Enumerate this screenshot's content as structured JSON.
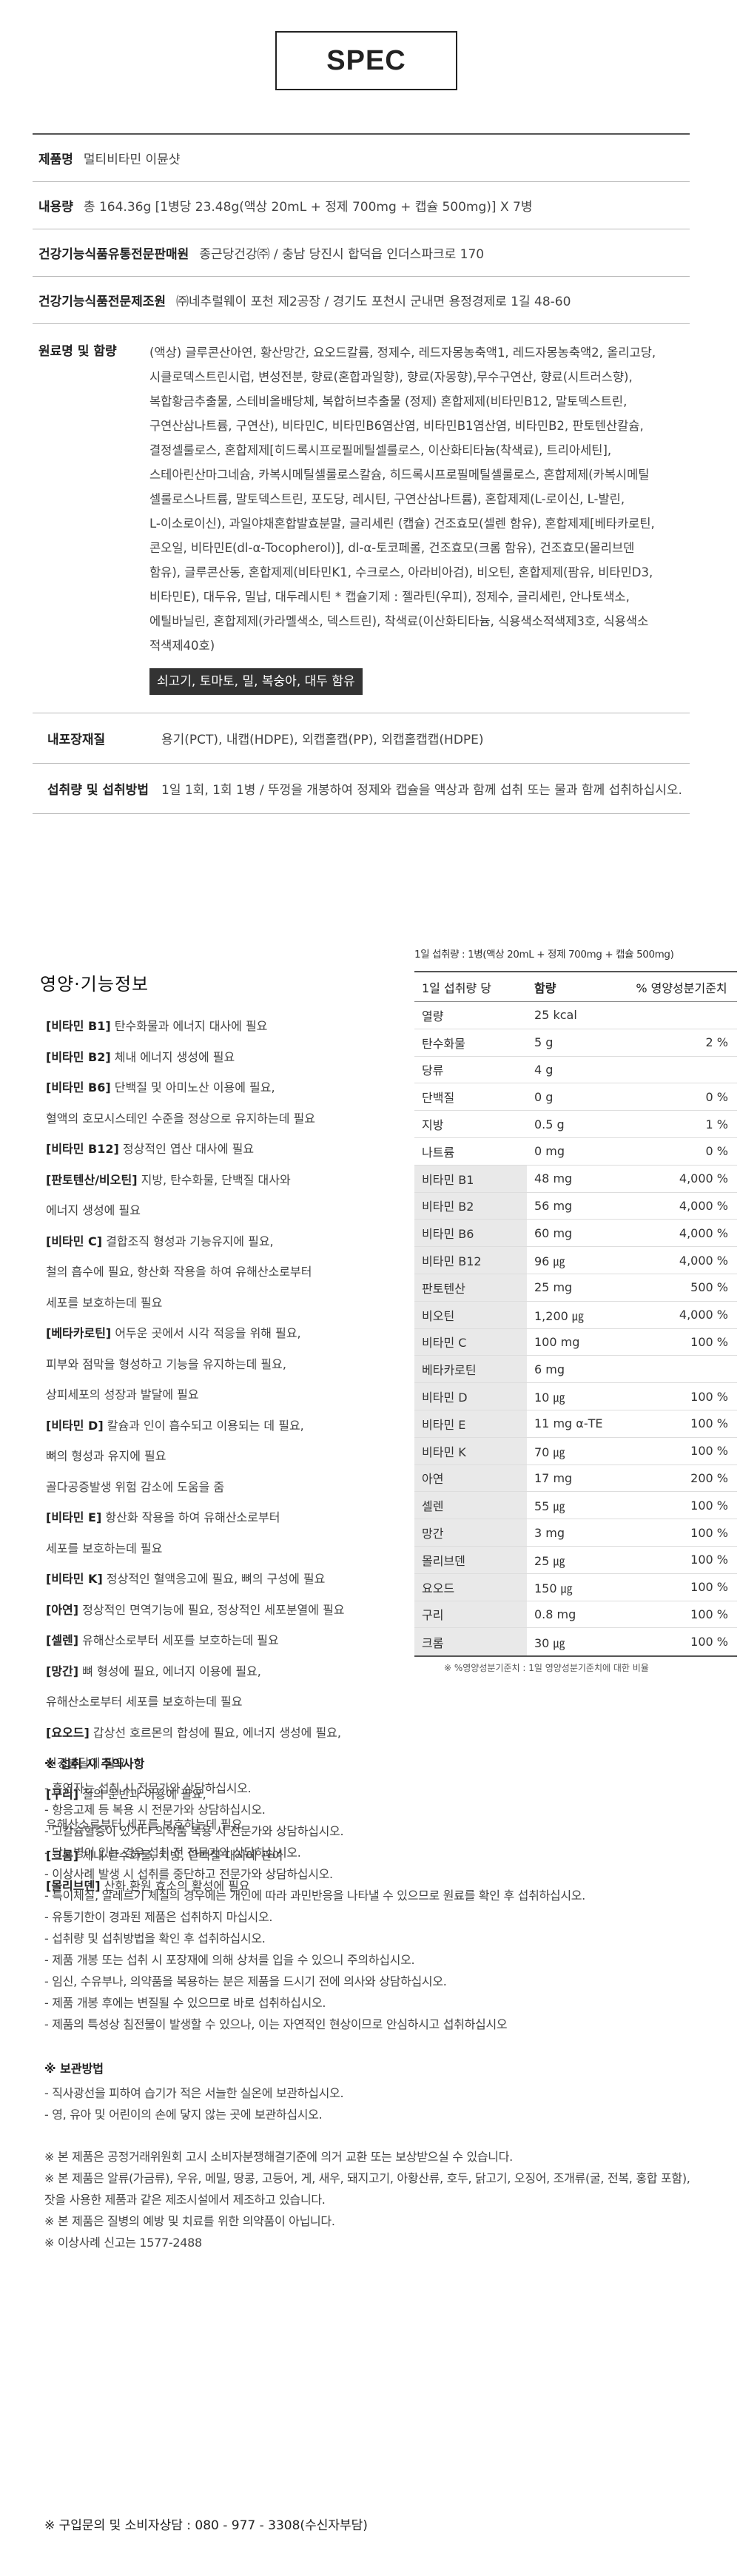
{
  "spec": {
    "title": "SPEC"
  },
  "product": {
    "name_label": "제품명",
    "name": "멀티비타민 이뮨샷",
    "content_label": "내용량",
    "content": "총 164.36g [1병당 23.48g(액상 20mL + 정제 700mg + 캡슐 500mg)] X 7병",
    "manufacturer_label": "건강기능식품유통전문판매원",
    "manufacturer": "종근당건강㈜ / 충남 당진시 합덕읍 인더스파크로 170",
    "producer_label": "건강기능식품전문제조원",
    "producer": "㈜네추럴웨이 포천 제2공장 / 경기도 포천시 군내면 용정경제로 1길 48-60",
    "ingredients_label": "원료명 및 함량",
    "ingredients_lines": [
      "(액상) 글루콘산아연, 황산망간, 요오드칼륨, 정제수, 레드자몽농축액1, 레드자몽농축액2, 올리고당,",
      "시클로덱스트린시럽, 변성전분, 향료(혼합과일향), 향료(자몽향),무수구연산, 향료(시트러스향),",
      "복합황금추출물, 스테비올배당체, 복합허브추출물 (정제) 혼합제제(비타민B12, 말토덱스트린,",
      "구연산삼나트륨, 구연산), 비타민C, 비타민B6염산염, 비타민B1염산염, 비타민B2, 판토텐산칼슘,",
      "결정셀룰로스, 혼합제제[히드록시프로필메틸셀룰로스, 이산화티타늄(착색료), 트리아세틴],",
      "스테아린산마그네슘, 카복시메틸셀룰로스칼슘, 히드록시프로필메틸셀룰로스, 혼합제제(카복시메틸",
      "셀룰로스나트륨, 말토덱스트린, 포도당, 레시틴, 구연산삼나트륨), 혼합제제(L-로이신, L-발린,",
      "L-이소로이신), 과일야채혼합발효분말, 글리세린 (캡슐) 건조효모(셀렌 함유), 혼합제제[베타카로틴,",
      "콘오일, 비타민E(dl-α-Tocopherol)], dl-α-토코페롤, 건조효모(크롬 함유), 건조효모(몰리브덴",
      "함유), 글루콘산동, 혼합제제(비타민K1, 수크로스, 아라비아검), 비오틴, 혼합제제(팜유, 비타민D3,",
      "비타민E), 대두유, 밀납, 대두레시틴 * 캡슐기제 : 젤라틴(우피), 정제수, 글리세린, 안나토색소,",
      "에틸바닐린, 혼합제제(카라멜색소, 덱스트린), 착색료(이산화티타늄, 식용색소적색제3호, 식용색소",
      "적색제40호)"
    ],
    "allergen": "쇠고기, 토마토, 밀, 복숭아, 대두 함유",
    "package_label": "내포장재질",
    "package": "용기(PCT), 내캡(HDPE), 외캡홀캡(PP), 외캡홀캡캡(HDPE)",
    "method_label": "섭취량 및 섭취방법",
    "method": "1일 1회, 1회 1병 / 뚜껑을 개봉하여 정제와 캡슐을 액상과 함께 섭취 또는 물과 함께 섭취하십시오."
  },
  "nutrition_info": {
    "title": "영양·기능정보",
    "items": [
      {
        "k": "[비타민 B1]",
        "t": " 탄수화물과 에너지 대사에 필요"
      },
      {
        "k": "[비타민 B2]",
        "t": " 체내 에너지 생성에 필요"
      },
      {
        "k": "[비타민 B6]",
        "t": " 단백질 및 아미노산 이용에 필요,"
      },
      {
        "k": "",
        "t": "혈액의 호모시스테인 수준을 정상으로 유지하는데 필요"
      },
      {
        "k": "[비타민 B12]",
        "t": " 정상적인 엽산 대사에 필요"
      },
      {
        "k": "[판토텐산/비오틴]",
        "t": " 지방, 탄수화물, 단백질 대사와"
      },
      {
        "k": "",
        "t": "에너지 생성에 필요"
      },
      {
        "k": "[비타민 C]",
        "t": " 결합조직 형성과 기능유지에 필요,"
      },
      {
        "k": "",
        "t": "철의 흡수에 필요, 항산화 작용을 하여 유해산소로부터"
      },
      {
        "k": "",
        "t": "세포를 보호하는데 필요"
      },
      {
        "k": "[베타카로틴]",
        "t": " 어두운 곳에서 시각 적응을 위해 필요,"
      },
      {
        "k": "",
        "t": "피부와 점막을 형성하고 기능을 유지하는데 필요,"
      },
      {
        "k": "",
        "t": "상피세포의 성장과 발달에 필요"
      },
      {
        "k": "[비타민 D]",
        "t": " 칼슘과 인이 흡수되고 이용되는 데 필요,"
      },
      {
        "k": "",
        "t": "뼈의 형성과 유지에 필요"
      },
      {
        "k": "",
        "t": "골다공증발생 위험 감소에 도움을 줌"
      },
      {
        "k": "[비타민 E]",
        "t": " 항산화 작용을 하여 유해산소로부터"
      },
      {
        "k": "",
        "t": "세포를 보호하는데 필요"
      },
      {
        "k": "[비타민 K]",
        "t": " 정상적인 혈액응고에 필요, 뼈의 구성에 필요"
      },
      {
        "k": "[아연]",
        "t": " 정상적인 면역기능에 필요, 정상적인 세포분열에 필요"
      },
      {
        "k": "[셀렌]",
        "t": " 유해산소로부터 세포를 보호하는데 필요"
      },
      {
        "k": "[망간]",
        "t": " 뼈 형성에 필요, 에너지 이용에 필요,"
      },
      {
        "k": "",
        "t": "유해산소로부터 세포를 보호하는데 필요"
      },
      {
        "k": "[요오드]",
        "t": " 갑상선 호르몬의 합성에 필요, 에너지 생성에 필요,"
      },
      {
        "k": "",
        "t": "신경발달에 필요"
      },
      {
        "k": "[구리]",
        "t": " 철의 운반과 이용에 필요,"
      },
      {
        "k": "",
        "t": "유해산소로부터 세포를 보호하는데 필요"
      },
      {
        "k": "[크롬]",
        "t": " 체내 탄수화물, 지방, 단백질 대사에 관여"
      },
      {
        "k": "[몰리브덴]",
        "t": " 산화.환원 효소의 활성에 필요"
      }
    ]
  },
  "nutrition_table": {
    "serving": "1일 섭취량 : 1병(액상 20mL + 정제 700mg + 캡슐 500mg)",
    "headers": [
      "1일 섭취량 당",
      "함량",
      "% 영양성분기준치"
    ],
    "rows": [
      {
        "name": "열량",
        "amount": "25 kcal",
        "pct": ""
      },
      {
        "name": "탄수화물",
        "amount": "5 g",
        "pct": "2 %"
      },
      {
        "name": "당류",
        "amount": "4 g",
        "pct": ""
      },
      {
        "name": "단백질",
        "amount": "0 g",
        "pct": "0 %"
      },
      {
        "name": "지방",
        "amount": "0.5 g",
        "pct": "1 %"
      },
      {
        "name": "나트륨",
        "amount": "0 mg",
        "pct": "0 %"
      },
      {
        "name": "비타민 B1",
        "amount": "48 mg",
        "pct": "4,000 %"
      },
      {
        "name": "비타민 B2",
        "amount": "56 mg",
        "pct": "4,000 %"
      },
      {
        "name": "비타민 B6",
        "amount": "60 mg",
        "pct": "4,000 %"
      },
      {
        "name": "비타민 B12",
        "amount": "96 ㎍",
        "pct": "4,000 %"
      },
      {
        "name": "판토텐산",
        "amount": "25 mg",
        "pct": "500 %"
      },
      {
        "name": "비오틴",
        "amount": "1,200 ㎍",
        "pct": "4,000 %"
      },
      {
        "name": "비타민 C",
        "amount": "100 mg",
        "pct": "100 %"
      },
      {
        "name": "베타카로틴",
        "amount": "6 mg",
        "pct": ""
      },
      {
        "name": "비타민 D",
        "amount": "10 ㎍",
        "pct": "100 %"
      },
      {
        "name": "비타민 E",
        "amount": "11 mg α-TE",
        "pct": "100 %"
      },
      {
        "name": "비타민 K",
        "amount": "70 ㎍",
        "pct": "100 %"
      },
      {
        "name": "아연",
        "amount": "17 mg",
        "pct": "200 %"
      },
      {
        "name": "셀렌",
        "amount": "55 ㎍",
        "pct": "100 %"
      },
      {
        "name": "망간",
        "amount": "3 mg",
        "pct": "100 %"
      },
      {
        "name": "몰리브덴",
        "amount": "25 ㎍",
        "pct": "100 %"
      },
      {
        "name": "요오드",
        "amount": "150 ㎍",
        "pct": "100 %"
      },
      {
        "name": "구리",
        "amount": "0.8 mg",
        "pct": "100 %"
      },
      {
        "name": "크롬",
        "amount": "30 ㎍",
        "pct": "100 %"
      }
    ],
    "footnote": "※ %영양성분기준치 : 1일 영양성분기준치에 대한 비율"
  },
  "cautions": {
    "title": "※ 섭취 시 주의사항",
    "lines": [
      "- 흡연자는 섭취 시 전문가와 상담하십시오.",
      "- 항응고제 등 복용 시 전문가와 상담하십시오.",
      "- 고칼슘혈증이 있거나 의약품 복용 시 전문가와 상담하십시오.",
      "- 당뇨병이 있는 경우 섭취 전 전문가와 상담하십시오.",
      "- 이상사례 발생 시 섭취를 중단하고 전문가와 상담하십시오.",
      "- 특이체질, 알레르기 체질의 경우에는 개인에 따라 과민반응을 나타낼 수 있으므로 원료를 확인 후 섭취하십시오.",
      "- 유통기한이 경과된 제품은 섭취하지 마십시오.",
      "- 섭취량 및 섭취방법을 확인 후 섭취하십시오.",
      "- 제품 개봉 또는 섭취 시 포장재에 의해 상처를 입을 수 있으니 주의하십시오.",
      "- 임신, 수유부나, 의약품을 복용하는 분은 제품을 드시기 전에 의사와 상담하십시오.",
      "- 제품 개봉 후에는 변질될 수 있으므로 바로 섭취하십시오.",
      "- 제품의 특성상 침전물이 발생할 수 있으나, 이는 자연적인 현상이므로 안심하시고 섭취하십시오"
    ]
  },
  "storage": {
    "title": "※ 보관방법",
    "lines": [
      "- 직사광선을 피하여 습기가 적은 서늘한 실온에 보관하십시오.",
      "- 영, 유아 및 어린이의 손에 닿지 않는 곳에 보관하십시오."
    ]
  },
  "legal": {
    "lines": [
      "※ 본 제품은 공정거래위원회 고시 소비자분쟁해결기준에 의거 교환 또는 보상받으실 수 있습니다.",
      "※ 본 제품은 알류(가금류), 우유, 메밀, 땅콩, 고등어, 게, 새우, 돼지고기, 아황산류, 호두, 닭고기, 오징어, 조개류(굴, 전복, 홍합 포함),",
      "    잣을 사용한 제품과 같은 제조시설에서 제조하고 있습니다.",
      "※ 본 제품은 질병의 예방 및 치료를 위한 의약품이 아닙니다.",
      "※ 이상사례 신고는 1577-2488"
    ]
  },
  "contact": {
    "text": "※ 구입문의 및 소비자상담 : 080 - 977 - 3308(수신자부담)"
  }
}
